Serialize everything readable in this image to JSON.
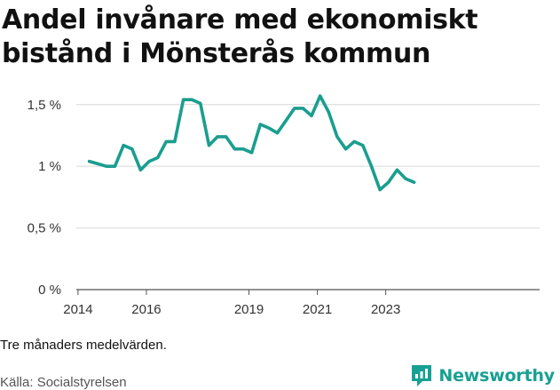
{
  "title": "Andel invånare med ekonomiskt bistånd i Mönsterås kommun",
  "note": "Tre månaders medelvärden.",
  "source": "Källa: Socialstyrelsen",
  "brand": {
    "name": "Newsworthy",
    "icon": "newsworthy-logo-icon",
    "color": "#17a093"
  },
  "chart_data": {
    "type": "line",
    "title": "Andel invånare med ekonomiskt bistånd i Mönsterås kommun",
    "xlabel": "",
    "ylabel": "",
    "x_ticks": [
      "2014",
      "2016",
      "2019",
      "2021",
      "2023"
    ],
    "x_tick_values": [
      2014.0,
      2016.0,
      2019.0,
      2021.0,
      2023.0
    ],
    "xlim": [
      2013.95,
      2027.5
    ],
    "y_ticks": [
      "0 %",
      "0,5 %",
      "1 %",
      "1,5 %"
    ],
    "y_tick_values": [
      0,
      0.5,
      1,
      1.5
    ],
    "ylim": [
      0,
      1.7
    ],
    "grid": true,
    "line_color": "#1a9e8f",
    "series": [
      {
        "x": [
          2014.33,
          2014.58,
          2014.83,
          2015.08,
          2015.33,
          2015.58,
          2015.83,
          2016.08,
          2016.33,
          2016.58,
          2016.83,
          2017.08,
          2017.33,
          2017.58,
          2017.83,
          2018.08,
          2018.33,
          2018.58,
          2018.83,
          2019.08,
          2019.33,
          2019.58,
          2019.83,
          2020.08,
          2020.33,
          2020.58,
          2020.83,
          2021.08,
          2021.33,
          2021.58,
          2021.83,
          2022.08,
          2022.33,
          2022.58,
          2022.83,
          2023.08,
          2023.33,
          2023.58,
          2023.83
        ],
        "y": [
          1.04,
          1.02,
          1.0,
          1.0,
          1.17,
          1.14,
          0.97,
          1.04,
          1.07,
          1.2,
          1.2,
          1.54,
          1.54,
          1.51,
          1.17,
          1.24,
          1.24,
          1.14,
          1.14,
          1.11,
          1.34,
          1.31,
          1.27,
          1.37,
          1.47,
          1.47,
          1.41,
          1.57,
          1.44,
          1.24,
          1.14,
          1.2,
          1.17,
          1.0,
          0.81,
          0.87,
          0.97,
          0.9,
          0.87
        ]
      }
    ]
  }
}
